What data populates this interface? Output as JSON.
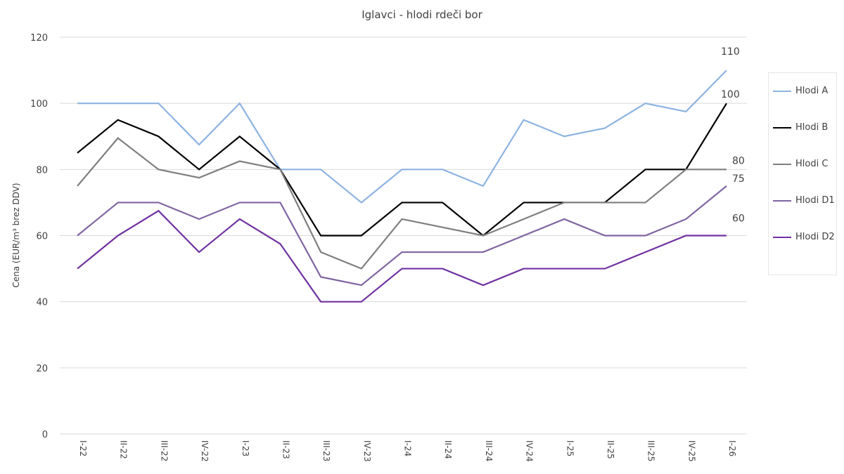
{
  "chart_data": {
    "type": "line",
    "title": "Iglavci - hlodi rdeči bor",
    "xlabel": "",
    "ylabel": "Cena (EUR/m³ brez DDV)",
    "ylim": [
      0,
      120
    ],
    "yticks": [
      0,
      20,
      40,
      60,
      80,
      100,
      120
    ],
    "grid": true,
    "legend_position": "right",
    "categories": [
      "I-22",
      "II-22",
      "III-22",
      "IV-22",
      "I-23",
      "II-23",
      "III-23",
      "IV-23",
      "I-24",
      "II-24",
      "III-24",
      "IV-24",
      "I-25",
      "II-25",
      "III-25",
      "IV-25",
      "I-26"
    ],
    "series": [
      {
        "name": "Hlodi A",
        "color": "#8db3e2",
        "values": [
          100,
          100,
          100,
          87.5,
          100,
          80,
          80,
          70,
          80,
          80,
          75,
          95,
          90,
          92.5,
          100,
          97.5,
          110
        ],
        "last_label": "110"
      },
      {
        "name": "Hlodi B",
        "color": "#000000",
        "values": [
          85,
          95,
          90,
          80,
          90,
          80,
          60,
          60,
          70,
          70,
          60,
          70,
          70,
          70,
          80,
          80,
          100
        ],
        "last_label": "100"
      },
      {
        "name": "Hlodi C",
        "color": "#7f7f7f",
        "values": [
          75,
          89.5,
          80,
          77.5,
          82.5,
          80,
          55,
          50,
          65,
          62.5,
          60,
          65,
          70,
          70,
          70,
          80,
          80
        ],
        "last_label": "80"
      },
      {
        "name": "Hlodi D1",
        "color": "#8064a2",
        "values": [
          60,
          70,
          70,
          65,
          70,
          70,
          47.5,
          45,
          55,
          55,
          55,
          60,
          65,
          60,
          60,
          65,
          75
        ],
        "last_label": "75"
      },
      {
        "name": "Hlodi D2",
        "color": "#7030a0",
        "values": [
          50,
          60,
          67.5,
          55,
          65,
          57.5,
          40,
          40,
          50,
          50,
          45,
          50,
          50,
          50,
          55,
          60,
          60
        ],
        "last_label": "60"
      }
    ]
  }
}
